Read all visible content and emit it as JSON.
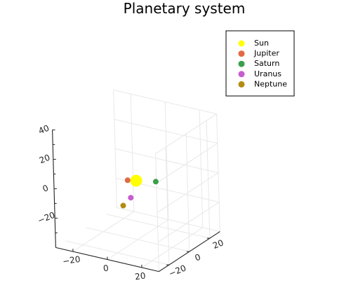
{
  "chart_data": {
    "type": "scatter",
    "projection": "3d",
    "title": "Planetary system",
    "xlabel": "",
    "ylabel": "",
    "zlabel": "",
    "xlim": [
      -30,
      30
    ],
    "ylim": [
      -30,
      30
    ],
    "zlim": [
      -40,
      40
    ],
    "x_ticks": [
      "−20",
      "0",
      "20"
    ],
    "y_ticks": [
      "−20",
      "0",
      "20"
    ],
    "z_ticks": [
      "−20",
      "0",
      "20",
      "40"
    ],
    "grid": true,
    "legend_position": "top-right",
    "series": [
      {
        "name": "Sun",
        "color": "#ffff00",
        "points": [
          {
            "x": 0,
            "y": 0,
            "z": 0
          }
        ],
        "size": "large"
      },
      {
        "name": "Jupiter",
        "color": "#e26844",
        "points": [
          {
            "x": -5,
            "y": 0,
            "z": -1
          }
        ],
        "size": "small"
      },
      {
        "name": "Saturn",
        "color": "#3aa04b",
        "points": [
          {
            "x": 9,
            "y": 4,
            "z": 0
          }
        ],
        "size": "small"
      },
      {
        "name": "Uranus",
        "color": "#c65cd0",
        "points": [
          {
            "x": -1,
            "y": -4,
            "z": -10
          }
        ],
        "size": "small"
      },
      {
        "name": "Neptune",
        "color": "#b38b12",
        "points": [
          {
            "x": -5,
            "y": -5,
            "z": -16
          }
        ],
        "size": "small"
      }
    ]
  }
}
